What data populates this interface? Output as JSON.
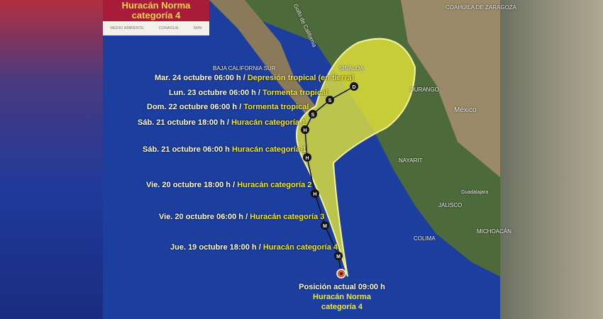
{
  "header": {
    "title_line1": "Huracán Norma",
    "title_line2": "categoría 4",
    "logos": [
      "MEDIO AMBIENTE",
      "CONAGUA",
      "SMN"
    ]
  },
  "forecast": [
    {
      "time": "Mar. 24 octubre 06:00 h /",
      "status": "Depresión tropical (en tierra)",
      "marker": "D"
    },
    {
      "time": "Lun. 23 octubre 06:00 h /",
      "status": "Tormenta tropical",
      "marker": "S"
    },
    {
      "time": "Dom. 22 octubre 06:00 h /",
      "status": "Tormenta tropical",
      "marker": "S"
    },
    {
      "time": "Sáb. 21 octubre 18:00 h /",
      "status": "Huracán categoría 1",
      "marker": "H"
    },
    {
      "time": "Sáb. 21 octubre 06:00 h",
      "status": "Huracán categoría 1",
      "marker": "H"
    },
    {
      "time": "Vie. 20 octubre 18:00 h /",
      "status": "Huracán categoría 2",
      "marker": "H"
    },
    {
      "time": "Vie. 20 octubre 06:00 h /",
      "status": "Huracán categoría 3",
      "marker": "M"
    },
    {
      "time": "Jue. 19 octubre 18:00 h /",
      "status": "Huracán categoría 4",
      "marker": "M"
    }
  ],
  "current": {
    "line1": "Posición actual 09:00 h",
    "line2": "Huracán Norma",
    "line3": "categoría 4"
  },
  "places": {
    "coahuila": "COAHUILA DE ZARAGOZA",
    "durango": "DURANGO",
    "mexico": "México",
    "nayarit": "NAYARIT",
    "guadalajara": "Guadalajara",
    "jalisco": "JALISCO",
    "colima": "COLIMA",
    "michoacan": "MICHOACÁN",
    "sinaloa": "SINALOA",
    "bcs": "BAJA CALIFORNIA SUR",
    "golfo": "Golfo de California"
  },
  "colors": {
    "ocean": "#1c3e9e",
    "cone": "#e6e63a",
    "header": "#a81c3a",
    "label": "#f0e63a"
  }
}
